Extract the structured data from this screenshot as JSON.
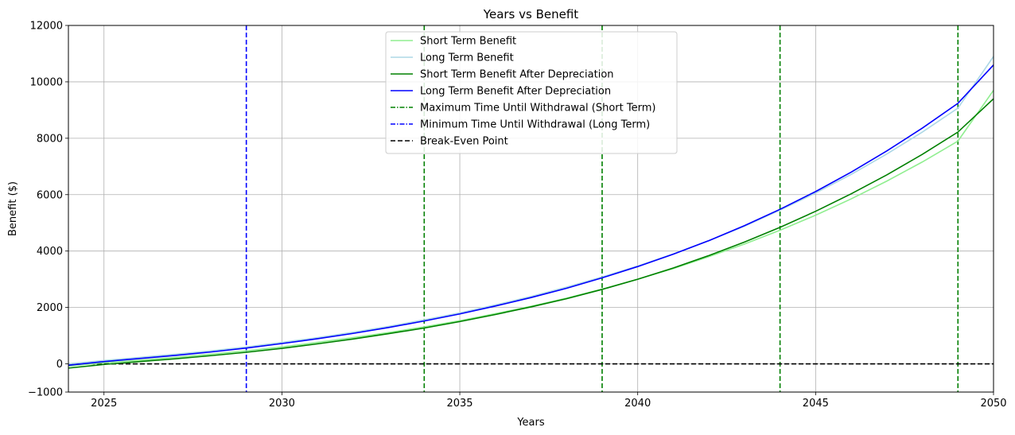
{
  "chart_data": {
    "type": "line",
    "title": "Years vs Benefit",
    "xlabel": "Years",
    "ylabel": "Benefit ($)",
    "xlim": [
      2024,
      2050
    ],
    "ylim": [
      -1000,
      12000
    ],
    "xticks": [
      2025,
      2030,
      2035,
      2040,
      2045,
      2050
    ],
    "yticks": [
      -1000,
      0,
      2000,
      4000,
      6000,
      8000,
      10000,
      12000
    ],
    "ytick_labels": [
      "−1000",
      "0",
      "2000",
      "4000",
      "6000",
      "8000",
      "10000",
      "12000"
    ],
    "grid": true,
    "legend_position": "top-center",
    "x": [
      2024,
      2025,
      2026,
      2027,
      2028,
      2029,
      2030,
      2031,
      2032,
      2033,
      2034,
      2035,
      2036,
      2037,
      2038,
      2039,
      2040,
      2041,
      2042,
      2043,
      2044,
      2045,
      2046,
      2047,
      2048,
      2049,
      2050
    ],
    "series": [
      {
        "name": "Short Term Benefit",
        "color": "#90ee90",
        "style": "solid",
        "values": [
          -80,
          40,
          130,
          230,
          340,
          460,
          600,
          760,
          930,
          1110,
          1310,
          1530,
          1780,
          2040,
          2330,
          2650,
          3000,
          3380,
          3800,
          4250,
          4740,
          5270,
          5850,
          6480,
          7160,
          7900,
          9700
        ]
      },
      {
        "name": "Long Term Benefit",
        "color": "#add8e6",
        "style": "solid",
        "values": [
          0,
          120,
          230,
          340,
          460,
          600,
          760,
          930,
          1120,
          1330,
          1560,
          1810,
          2090,
          2390,
          2720,
          3080,
          3470,
          3900,
          4370,
          4880,
          5450,
          6060,
          6720,
          7440,
          8220,
          9070,
          10900
        ]
      },
      {
        "name": "Short Term Benefit After Depreciation",
        "color": "#008000",
        "style": "solid",
        "values": [
          -150,
          -20,
          80,
          180,
          290,
          410,
          550,
          710,
          880,
          1070,
          1270,
          1500,
          1750,
          2020,
          2310,
          2640,
          3000,
          3400,
          3840,
          4320,
          4840,
          5410,
          6030,
          6700,
          7430,
          8220,
          9400
        ]
      },
      {
        "name": "Long Term Benefit After Depreciation",
        "color": "#0000ff",
        "style": "solid",
        "values": [
          -50,
          80,
          190,
          300,
          420,
          560,
          720,
          890,
          1080,
          1290,
          1520,
          1770,
          2050,
          2350,
          2680,
          3050,
          3450,
          3890,
          4370,
          4900,
          5480,
          6110,
          6800,
          7550,
          8360,
          9240,
          10600
        ]
      },
      {
        "name": "Maximum Time Until Withdrawal (Short Term)",
        "color": "#008000",
        "style": "dashdot",
        "vlines": [
          2034,
          2039,
          2044,
          2049
        ]
      },
      {
        "name": "Minimum Time Until Withdrawal (Long Term)",
        "color": "#0000ff",
        "style": "dashdot",
        "vlines": [
          2029
        ]
      },
      {
        "name": "Break-Even Point",
        "color": "#000000",
        "style": "dashed",
        "hline": 0
      }
    ]
  }
}
